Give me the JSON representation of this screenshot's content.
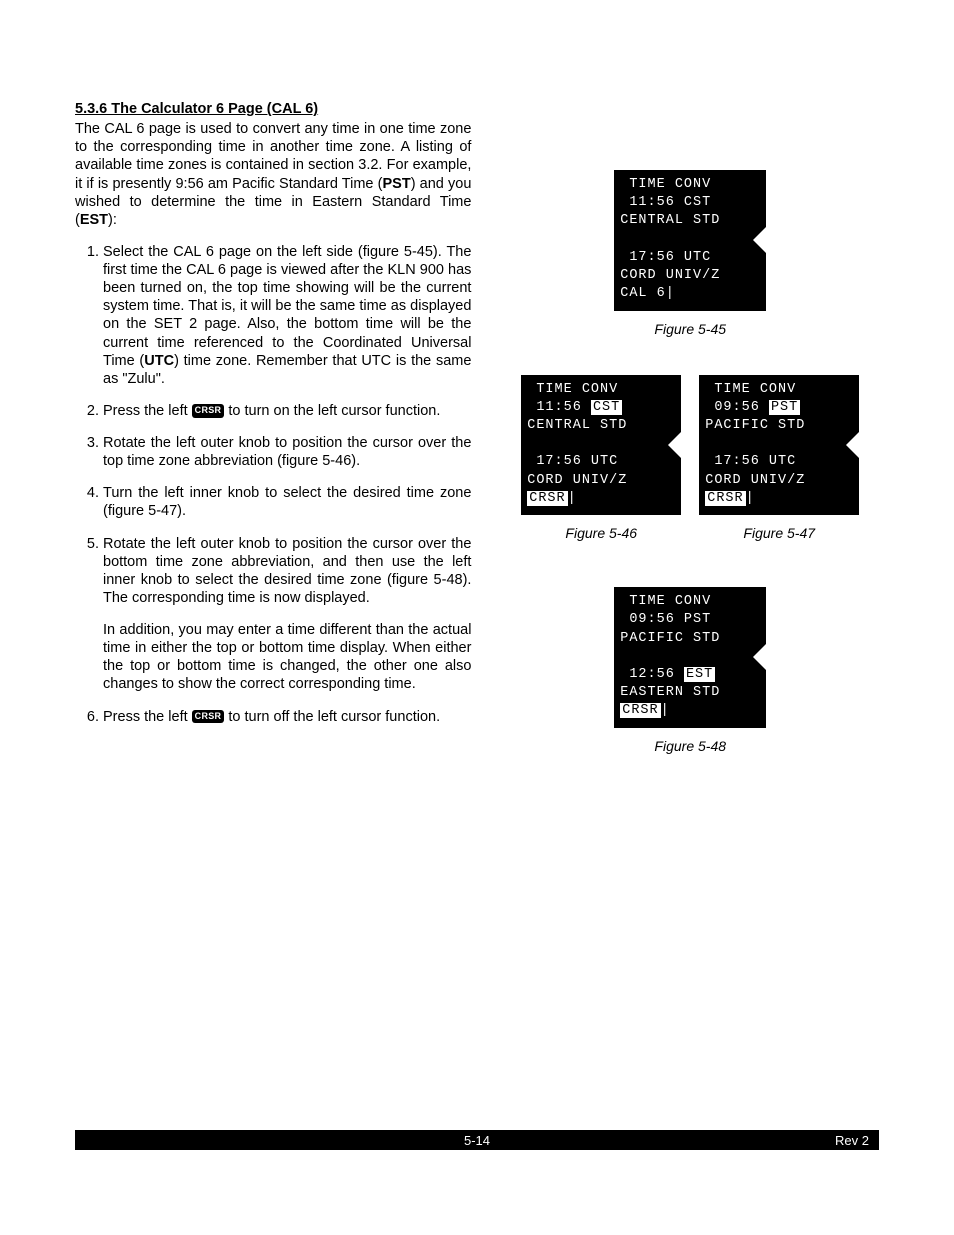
{
  "heading": "5.3.6 The Calculator 6 Page (CAL 6)",
  "intro": "The CAL 6 page is used to convert any time in one time zone to the corresponding time in another time zone.  A listing of available time zones is contained in section 3.2.  For example, it if is presently 9:56 am Pacific Standard Time (",
  "intro_bold1": "PST",
  "intro_mid": ") and you wished to determine the time in Eastern Standard Time (",
  "intro_bold2": "EST",
  "intro_end": "):",
  "steps": {
    "s1a": "Select the CAL 6 page on the left side (figure 5-45). The first time the CAL 6 page is viewed after the KLN 900 has been turned on, the top time showing will be the current system time.  That is, it will be the same time as displayed on the SET 2 page.  Also, the bottom time will be the current time referenced to the Coordinated Universal Time (",
    "s1b": "UTC",
    "s1c": ") time zone. Remember that UTC is the same as \"Zulu\".",
    "s2a": "Press the left ",
    "s2b": " to turn on the left cursor function.",
    "s3": "Rotate the left outer knob to position the cursor over the top time zone abbreviation  (figure 5-46).",
    "s4": "Turn the left inner knob to select the desired time zone (figure 5-47).",
    "s5a": "Rotate the left outer knob to position the cursor over the bottom time zone abbreviation, and then use the left inner knob to select the desired time zone (figure 5-48).  The corresponding time is now displayed.",
    "s5b": "In addition, you may enter a time different than the actual time in either the top or bottom time display. When either the top or bottom time is changed, the other one also changes to show the correct corresponding time.",
    "s6a": "Press the left ",
    "s6b": " to turn off the left cursor function."
  },
  "crsr_label": "CRSR",
  "screens": {
    "fig45": {
      "l1": " TIME CONV",
      "l2": " 11:56 CST",
      "l3": "CENTRAL STD",
      "l4": "",
      "l5": " 17:56 UTC",
      "l6": "CORD UNIV/Z",
      "l7": "CAL 6|",
      "caption": "Figure 5-45"
    },
    "fig46": {
      "l1": " TIME CONV",
      "l2a": " 11:56 ",
      "l2b": "CST",
      "l3": "CENTRAL STD",
      "l4": "",
      "l5": " 17:56 UTC",
      "l6": "CORD UNIV/Z",
      "l7": "CRSR",
      "caption": "Figure 5-46"
    },
    "fig47": {
      "l1": " TIME CONV",
      "l2a": " 09:56 ",
      "l2b": "PST",
      "l3": "PACIFIC STD",
      "l4": "",
      "l5": " 17:56 UTC",
      "l6": "CORD UNIV/Z",
      "l7": "CRSR",
      "caption": "Figure 5-47"
    },
    "fig48": {
      "l1": " TIME CONV",
      "l2": " 09:56 PST",
      "l3": "PACIFIC STD",
      "l4": "",
      "l5a": " 12:56 ",
      "l5b": "EST",
      "l6": "EASTERN STD",
      "l7": "CRSR",
      "caption": "Figure 5-48"
    }
  },
  "footer": {
    "page": "5-14",
    "rev": "Rev 2"
  }
}
